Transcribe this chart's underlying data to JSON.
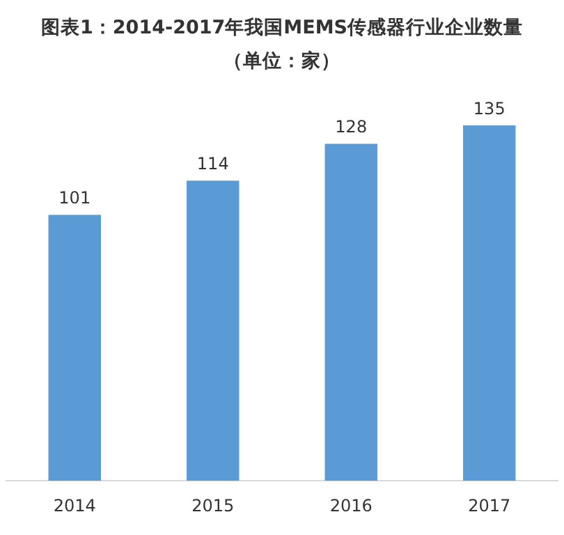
{
  "chart_data": {
    "type": "bar",
    "title": "图表1：2014-2017年我国MEMS传感器行业企业数量",
    "subtitle": "（单位：家）",
    "categories": [
      "2014",
      "2015",
      "2016",
      "2017"
    ],
    "values": [
      101,
      114,
      128,
      135
    ],
    "color": "#5b9bd5",
    "data_labels": true
  }
}
